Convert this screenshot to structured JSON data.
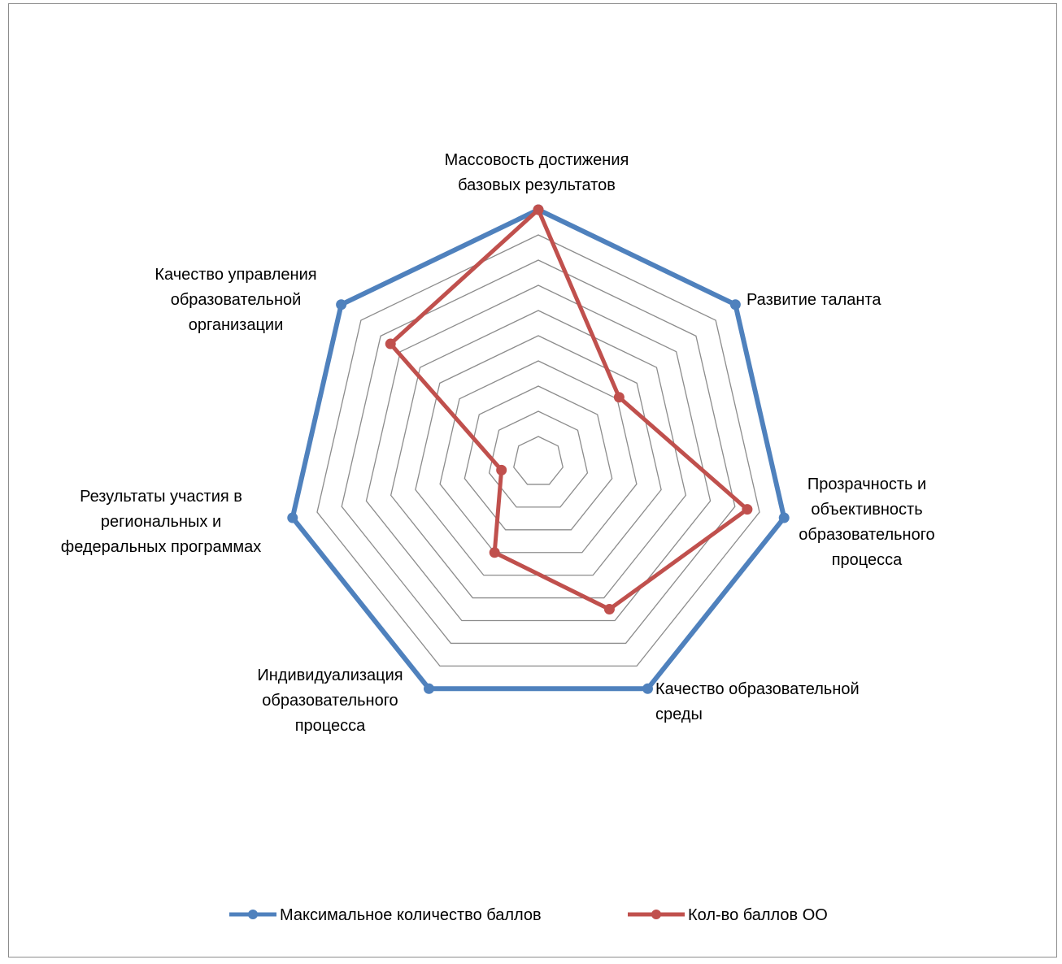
{
  "chart_data": {
    "type": "radar",
    "title": "",
    "categories": [
      [
        "Массовость достижения",
        "базовых результатов"
      ],
      [
        "Развитие таланта"
      ],
      [
        "Прозрачность и",
        "объективность",
        "образовательного",
        "процесса"
      ],
      [
        "Качество образовательной",
        "среды"
      ],
      [
        "Индивидуализация",
        "образовательного",
        "процесса"
      ],
      [
        "Результаты участия в",
        "региональных и",
        "федеральных программах"
      ],
      [
        "Качество управления",
        "образовательной",
        "организации"
      ]
    ],
    "rlim": [
      0,
      10
    ],
    "grid_rings": 10,
    "grid": true,
    "legend": "bottom",
    "series": [
      {
        "name": "Максимальное количество баллов",
        "color": "#4f81bd",
        "values": [
          10,
          10,
          10,
          10,
          10,
          10,
          10
        ]
      },
      {
        "name": "Кол-во баллов ОО",
        "color": "#c0504d",
        "values": [
          10,
          4.1,
          8.5,
          6.5,
          4.0,
          1.5,
          7.5
        ]
      }
    ]
  }
}
